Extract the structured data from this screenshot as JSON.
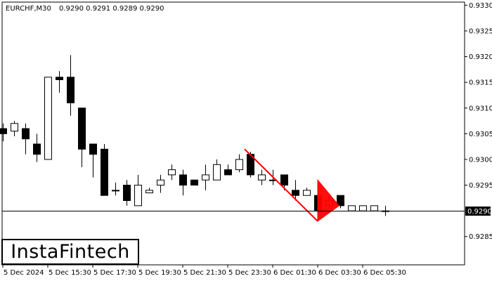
{
  "header": {
    "symbol": "EURCHF,M30",
    "ohlc": "0.9290 0.9291 0.9289 0.9290"
  },
  "logo": {
    "text": "InstaFintech"
  },
  "current_price_label": "0.9290",
  "colors": {
    "background": "#ffffff",
    "candle": "#000000",
    "pattern": "#ff0000",
    "price_badge": "#000000"
  },
  "chart_data": {
    "type": "candlestick",
    "pattern": "Bearish Pennant",
    "current_price": 0.929,
    "ylim": [
      0.92795,
      0.93306
    ],
    "grid": false,
    "y_ticks": [
      "0.9330",
      "0.9325",
      "0.9320",
      "0.9315",
      "0.9310",
      "0.9305",
      "0.9300",
      "0.9295",
      "0.9285"
    ],
    "x_ticks": [
      "5 Dec 2024",
      "5 Dec 15:30",
      "5 Dec 17:30",
      "5 Dec 19:30",
      "5 Dec 21:30",
      "5 Dec 23:30",
      "6 Dec 01:30",
      "6 Dec 03:30",
      "6 Dec 05:30"
    ],
    "x_tick_index": [
      0,
      4,
      8,
      12,
      16,
      20,
      24,
      28,
      32
    ],
    "candles": [
      {
        "o": 0.9306,
        "h": 0.9307,
        "l": 0.93035,
        "c": 0.9305
      },
      {
        "o": 0.93055,
        "h": 0.93075,
        "l": 0.93045,
        "c": 0.9307
      },
      {
        "o": 0.9306,
        "h": 0.9307,
        "l": 0.9301,
        "c": 0.9304
      },
      {
        "o": 0.9303,
        "h": 0.9305,
        "l": 0.92995,
        "c": 0.9301
      },
      {
        "o": 0.93,
        "h": 0.9316,
        "l": 0.93,
        "c": 0.9316
      },
      {
        "o": 0.9316,
        "h": 0.93172,
        "l": 0.9313,
        "c": 0.93155
      },
      {
        "o": 0.9316,
        "h": 0.93203,
        "l": 0.93085,
        "c": 0.9311
      },
      {
        "o": 0.931,
        "h": 0.931,
        "l": 0.92985,
        "c": 0.9302
      },
      {
        "o": 0.9303,
        "h": 0.9303,
        "l": 0.92965,
        "c": 0.9301
      },
      {
        "o": 0.9302,
        "h": 0.9303,
        "l": 0.9293,
        "c": 0.9293
      },
      {
        "o": 0.9294,
        "h": 0.92955,
        "l": 0.9293,
        "c": 0.9294
      },
      {
        "o": 0.9295,
        "h": 0.9296,
        "l": 0.9291,
        "c": 0.9292
      },
      {
        "o": 0.9291,
        "h": 0.9297,
        "l": 0.9291,
        "c": 0.9295
      },
      {
        "o": 0.92935,
        "h": 0.92945,
        "l": 0.92935,
        "c": 0.9294
      },
      {
        "o": 0.9295,
        "h": 0.9297,
        "l": 0.92935,
        "c": 0.9296
      },
      {
        "o": 0.9297,
        "h": 0.9299,
        "l": 0.9296,
        "c": 0.9298
      },
      {
        "o": 0.9297,
        "h": 0.9298,
        "l": 0.9293,
        "c": 0.9295
      },
      {
        "o": 0.9296,
        "h": 0.9296,
        "l": 0.9295,
        "c": 0.9295
      },
      {
        "o": 0.9296,
        "h": 0.9299,
        "l": 0.9294,
        "c": 0.9297
      },
      {
        "o": 0.9296,
        "h": 0.93,
        "l": 0.9296,
        "c": 0.9299
      },
      {
        "o": 0.9298,
        "h": 0.9299,
        "l": 0.9297,
        "c": 0.9297
      },
      {
        "o": 0.9298,
        "h": 0.9301,
        "l": 0.92975,
        "c": 0.93
      },
      {
        "o": 0.9301,
        "h": 0.93015,
        "l": 0.92965,
        "c": 0.9297
      },
      {
        "o": 0.9296,
        "h": 0.9298,
        "l": 0.9295,
        "c": 0.9297
      },
      {
        "o": 0.9296,
        "h": 0.9298,
        "l": 0.9295,
        "c": 0.9296
      },
      {
        "o": 0.9297,
        "h": 0.9297,
        "l": 0.9294,
        "c": 0.9295
      },
      {
        "o": 0.9294,
        "h": 0.9296,
        "l": 0.9292,
        "c": 0.9293
      },
      {
        "o": 0.9293,
        "h": 0.92945,
        "l": 0.9293,
        "c": 0.9294
      },
      {
        "o": 0.9293,
        "h": 0.9293,
        "l": 0.929,
        "c": 0.929
      },
      {
        "o": 0.9291,
        "h": 0.9293,
        "l": 0.92905,
        "c": 0.9292
      },
      {
        "o": 0.9293,
        "h": 0.9293,
        "l": 0.92905,
        "c": 0.9291
      },
      {
        "o": 0.929,
        "h": 0.9291,
        "l": 0.929,
        "c": 0.9291
      },
      {
        "o": 0.929,
        "h": 0.9291,
        "l": 0.929,
        "c": 0.9291
      },
      {
        "o": 0.929,
        "h": 0.9291,
        "l": 0.929,
        "c": 0.9291
      },
      {
        "o": 0.929,
        "h": 0.9291,
        "l": 0.9289,
        "c": 0.929
      }
    ],
    "pattern_pole": {
      "x": [
        21.5,
        28.0
      ],
      "y": [
        0.9302,
        0.9288
      ]
    },
    "pattern_flag": {
      "x": [
        28.0,
        28.0,
        29.9
      ],
      "y": [
        0.9288,
        0.9296,
        0.9291
      ]
    }
  }
}
